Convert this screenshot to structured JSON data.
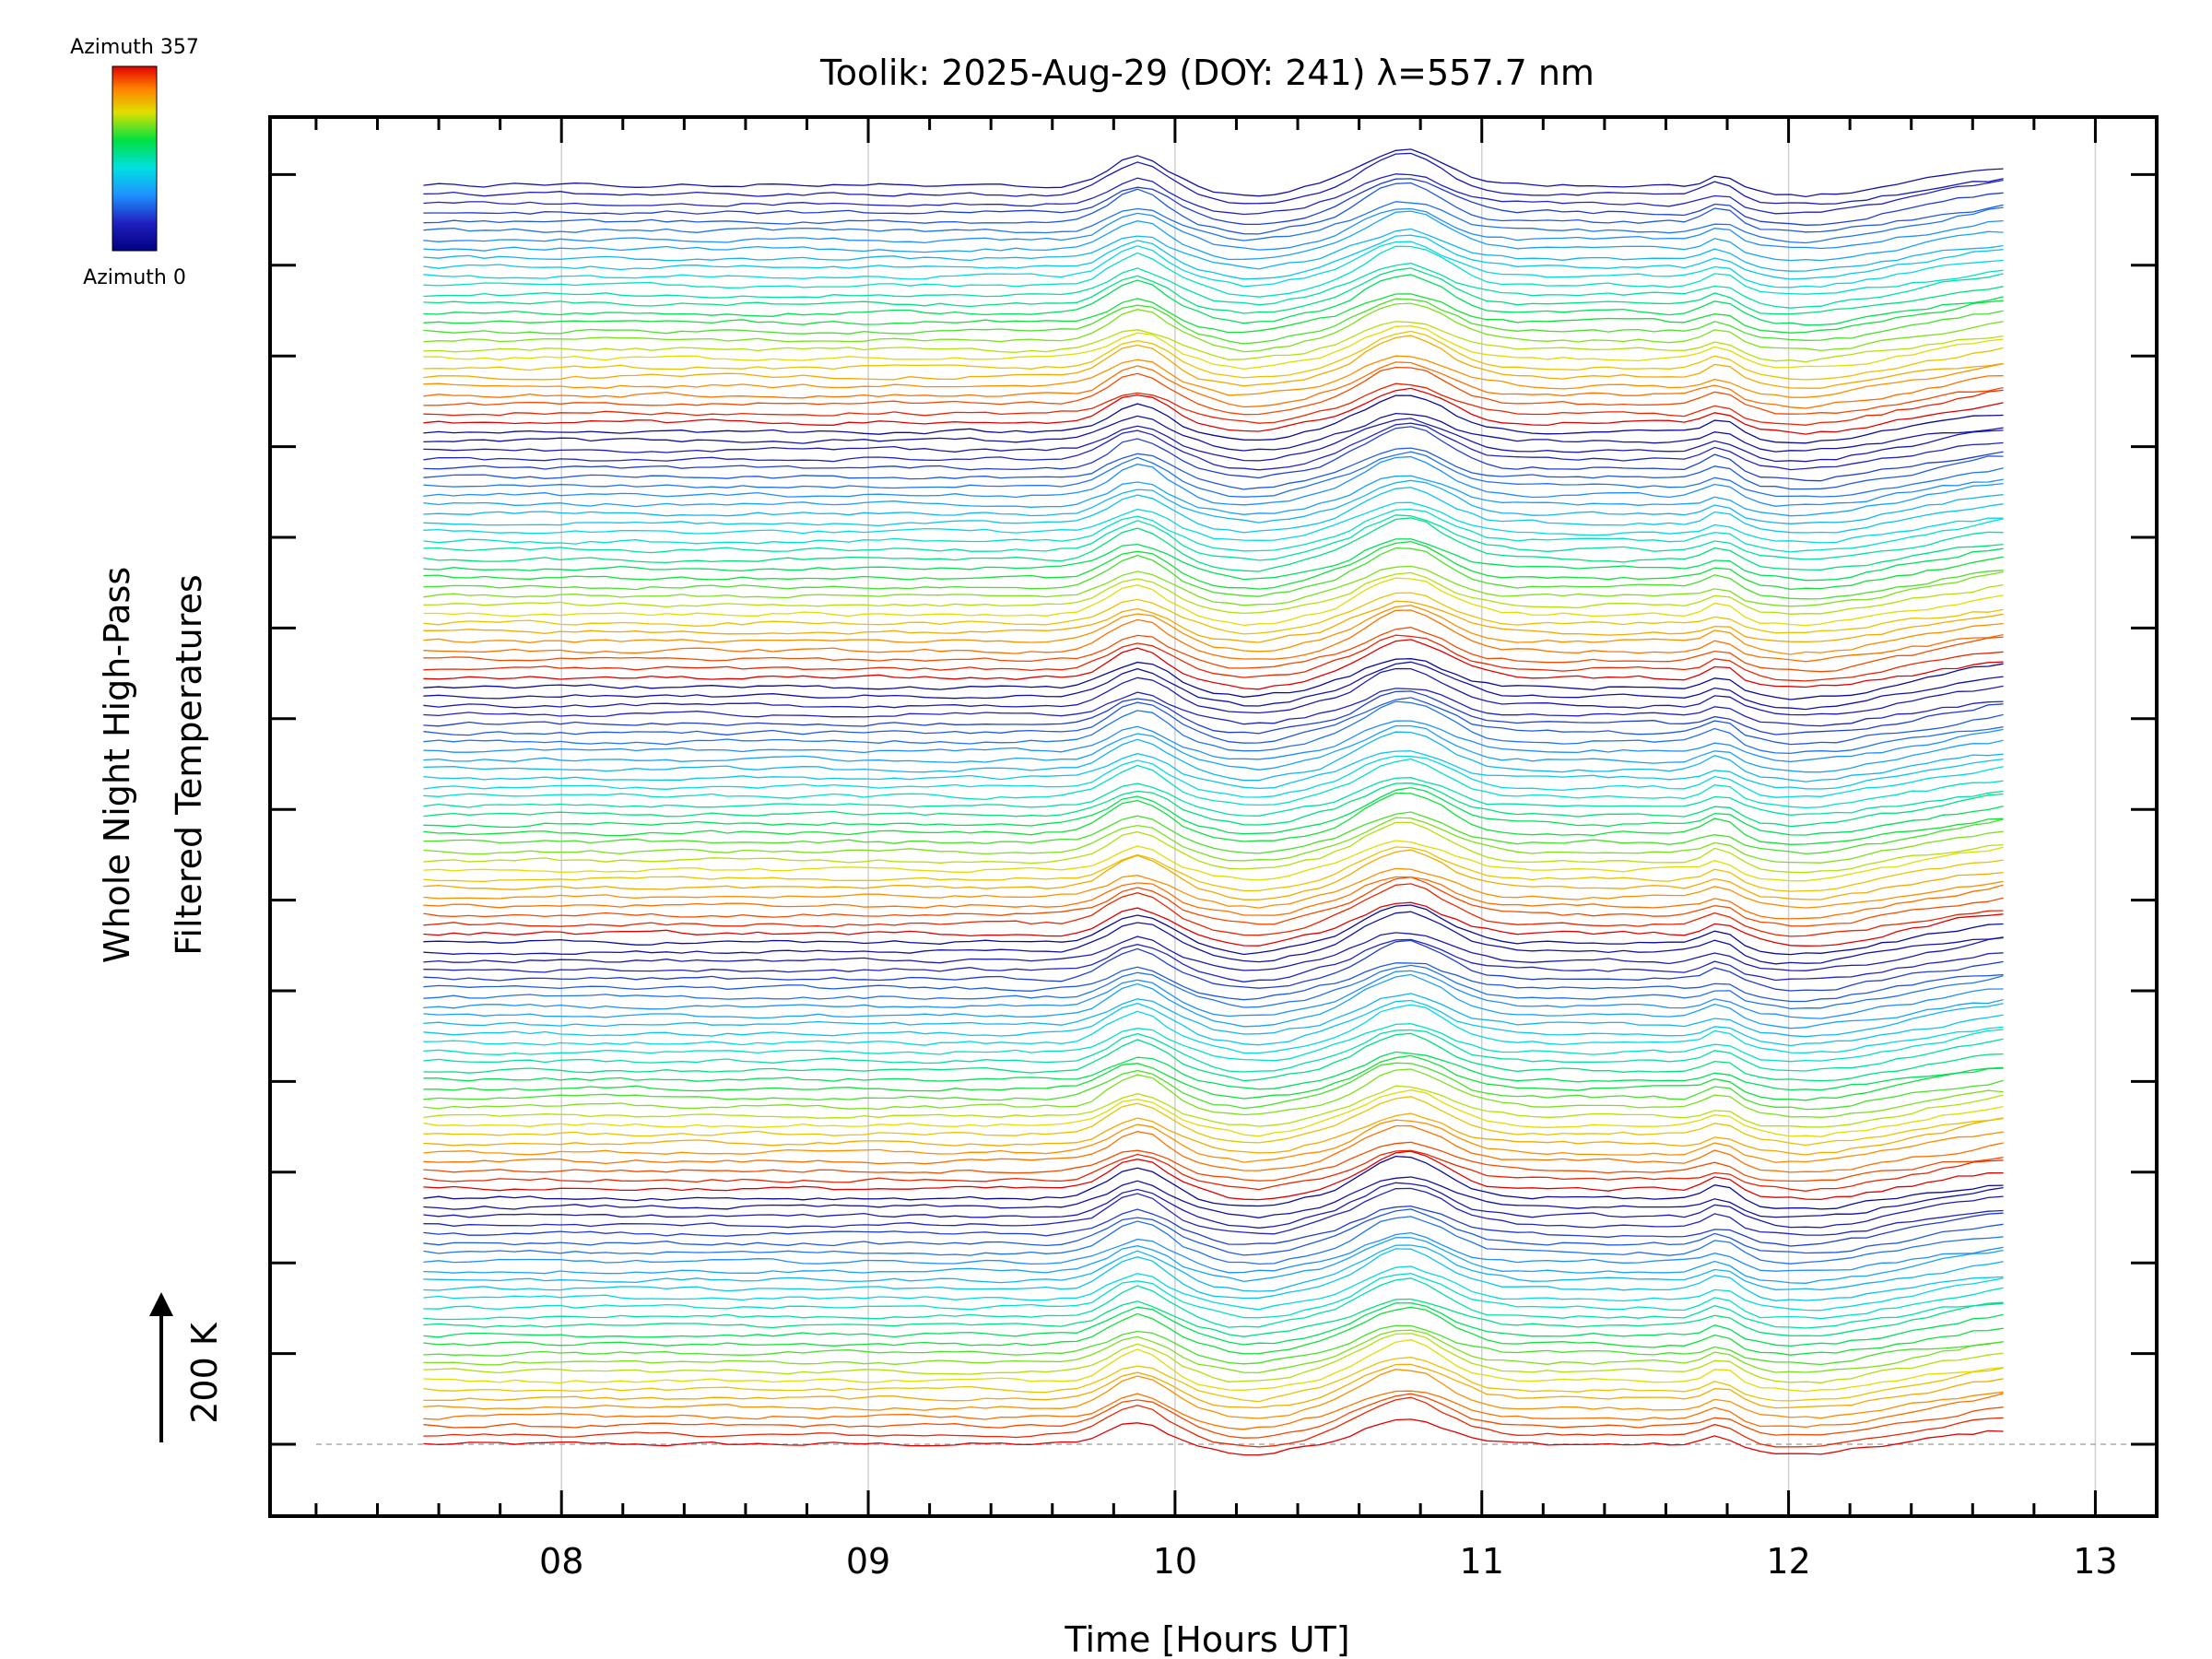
{
  "chart_data": {
    "type": "line",
    "title": "Toolik: 2025-Aug-29 (DOY: 241) λ=557.7 nm",
    "xlabel": "Time [Hours UT]",
    "ylabel_line1": "Whole Night High-Pass",
    "ylabel_line2": "Filtered Temperatures",
    "scale_label": "200 K",
    "xlim": [
      7.05,
      13.2
    ],
    "x_ticks": [
      8,
      9,
      10,
      11,
      12,
      13
    ],
    "x_tick_labels": [
      "08",
      "09",
      "10",
      "11",
      "12",
      "13"
    ],
    "x_range_data": [
      7.55,
      12.7
    ],
    "n_traces": 139,
    "offset_step_K": 20,
    "colorbar": {
      "top_label": "Azimuth 357",
      "bottom_label": "Azimuth 0",
      "min": 0,
      "max": 357
    },
    "colors": {
      "axis": "#000000",
      "grid": "#d0d0d0",
      "baseline": "#aaaaaa"
    },
    "common_features": {
      "peaks": [
        {
          "t": 9.88,
          "amp": 60,
          "width": 0.09
        },
        {
          "t": 10.75,
          "amp": 75,
          "width": 0.13
        },
        {
          "t": 11.78,
          "amp": 30,
          "width": 0.05
        }
      ],
      "dips": [
        {
          "t": 10.25,
          "amp": -22,
          "width": 0.12
        },
        {
          "t": 12.05,
          "amp": -24,
          "width": 0.18
        }
      ],
      "rise_end": {
        "t": 12.55,
        "amp": 55,
        "width": 0.12
      }
    }
  }
}
